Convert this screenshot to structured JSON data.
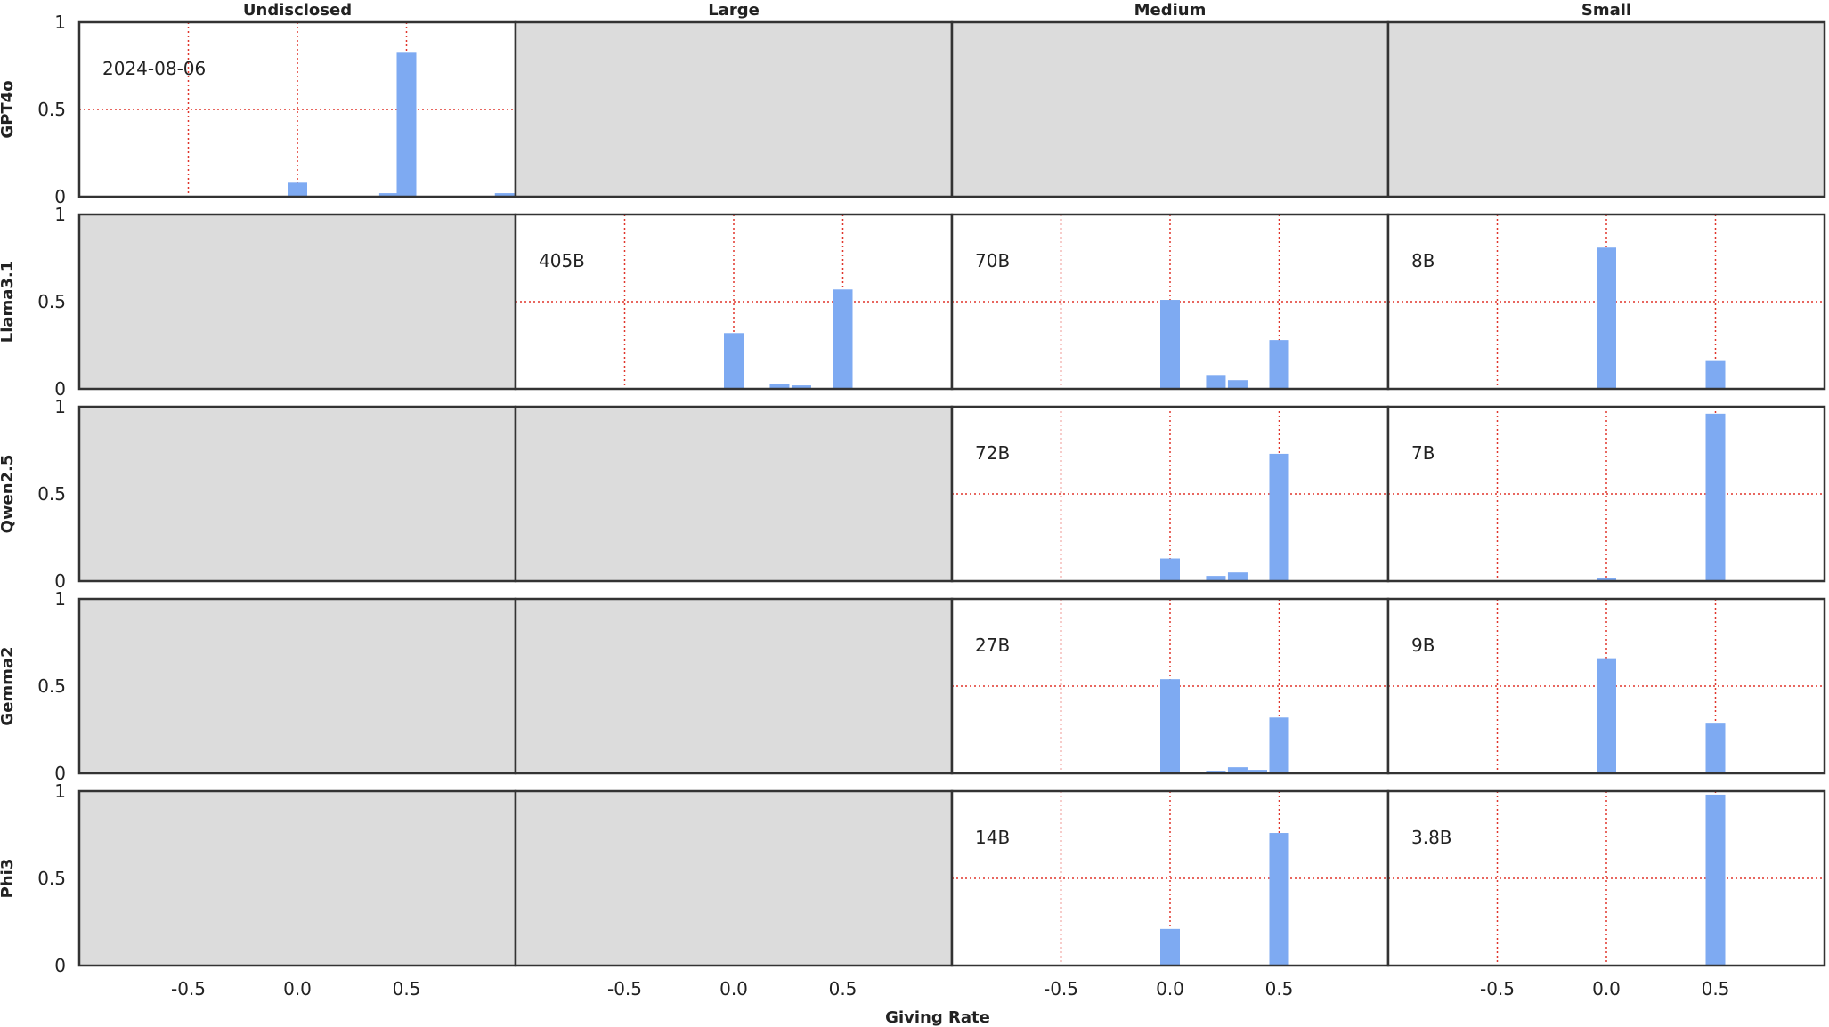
{
  "figure": {
    "columns": [
      "Undisclosed",
      "Large",
      "Medium",
      "Small"
    ],
    "rows": [
      "GPT4o",
      "Llama3.1",
      "Qwen2.5",
      "Gemma2",
      "Phi3"
    ],
    "xlabel": "Giving Rate",
    "colors": {
      "bar": "#7eaaf2",
      "refline": "#e0352b",
      "empty": "#dcdcdc",
      "frame": "#333333"
    }
  },
  "chart_data": {
    "type": "bar",
    "subtype": "faceted histogram grid",
    "xlabel": "Giving Rate",
    "x_ticks": [
      "-0.5",
      "0.0",
      "0.5"
    ],
    "y_ticks": [
      "0",
      "0.5",
      "1"
    ],
    "xlim": [
      -1.0,
      1.0
    ],
    "ylim": [
      0,
      1
    ],
    "reference_lines": {
      "x": [
        -0.5,
        0.0,
        0.5
      ],
      "y": [
        0.5
      ],
      "style": "red dotted"
    },
    "panels": [
      {
        "row": "GPT4o",
        "column": "Undisclosed",
        "label": "2024-08-06",
        "bars": [
          {
            "x": 0.0,
            "y": 0.08
          },
          {
            "x": 0.42,
            "y": 0.02
          },
          {
            "x": 0.5,
            "y": 0.83
          },
          {
            "x": 0.95,
            "y": 0.02
          }
        ]
      },
      {
        "row": "GPT4o",
        "column": "Large",
        "empty": true
      },
      {
        "row": "GPT4o",
        "column": "Medium",
        "empty": true
      },
      {
        "row": "GPT4o",
        "column": "Small",
        "empty": true
      },
      {
        "row": "Llama3.1",
        "column": "Undisclosed",
        "empty": true
      },
      {
        "row": "Llama3.1",
        "column": "Large",
        "label": "405B",
        "bars": [
          {
            "x": 0.0,
            "y": 0.32
          },
          {
            "x": 0.21,
            "y": 0.03
          },
          {
            "x": 0.31,
            "y": 0.02
          },
          {
            "x": 0.5,
            "y": 0.57
          }
        ]
      },
      {
        "row": "Llama3.1",
        "column": "Medium",
        "label": "70B",
        "bars": [
          {
            "x": 0.0,
            "y": 0.51
          },
          {
            "x": 0.21,
            "y": 0.08
          },
          {
            "x": 0.31,
            "y": 0.05
          },
          {
            "x": 0.5,
            "y": 0.28
          }
        ]
      },
      {
        "row": "Llama3.1",
        "column": "Small",
        "label": "8B",
        "bars": [
          {
            "x": 0.0,
            "y": 0.81
          },
          {
            "x": 0.5,
            "y": 0.16
          }
        ]
      },
      {
        "row": "Qwen2.5",
        "column": "Undisclosed",
        "empty": true
      },
      {
        "row": "Qwen2.5",
        "column": "Large",
        "empty": true
      },
      {
        "row": "Qwen2.5",
        "column": "Medium",
        "label": "72B",
        "bars": [
          {
            "x": 0.0,
            "y": 0.13
          },
          {
            "x": 0.21,
            "y": 0.03
          },
          {
            "x": 0.31,
            "y": 0.05
          },
          {
            "x": 0.5,
            "y": 0.73
          }
        ]
      },
      {
        "row": "Qwen2.5",
        "column": "Small",
        "label": "7B",
        "bars": [
          {
            "x": 0.0,
            "y": 0.02
          },
          {
            "x": 0.5,
            "y": 0.96
          }
        ]
      },
      {
        "row": "Gemma2",
        "column": "Undisclosed",
        "empty": true
      },
      {
        "row": "Gemma2",
        "column": "Large",
        "empty": true
      },
      {
        "row": "Gemma2",
        "column": "Medium",
        "label": "27B",
        "bars": [
          {
            "x": 0.0,
            "y": 0.54
          },
          {
            "x": 0.21,
            "y": 0.015
          },
          {
            "x": 0.31,
            "y": 0.035
          },
          {
            "x": 0.4,
            "y": 0.02
          },
          {
            "x": 0.5,
            "y": 0.32
          }
        ]
      },
      {
        "row": "Gemma2",
        "column": "Small",
        "label": "9B",
        "bars": [
          {
            "x": 0.0,
            "y": 0.66
          },
          {
            "x": 0.5,
            "y": 0.29
          }
        ]
      },
      {
        "row": "Phi3",
        "column": "Undisclosed",
        "empty": true
      },
      {
        "row": "Phi3",
        "column": "Large",
        "empty": true
      },
      {
        "row": "Phi3",
        "column": "Medium",
        "label": "14B",
        "bars": [
          {
            "x": 0.0,
            "y": 0.21
          },
          {
            "x": 0.5,
            "y": 0.76
          }
        ]
      },
      {
        "row": "Phi3",
        "column": "Small",
        "label": "3.8B",
        "bars": [
          {
            "x": 0.5,
            "y": 0.98
          }
        ]
      }
    ]
  }
}
